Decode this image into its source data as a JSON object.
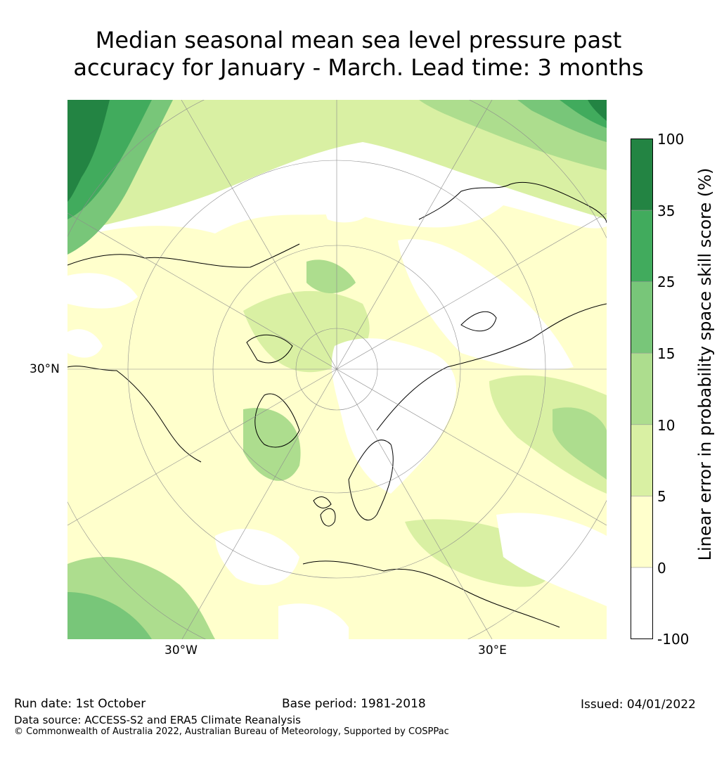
{
  "title_line1": "Median seasonal mean sea level pressure past",
  "title_line2": "accuracy for January - March. Lead time: 3 months",
  "map": {
    "projection": "north-polar-stereographic",
    "labels": {
      "lat_30n": "30°N",
      "lon_30w": "30°W",
      "lon_30e": "30°E"
    }
  },
  "colorbar": {
    "title": "Linear error in probability space skill score (%)",
    "ticks": [
      "100",
      "35",
      "25",
      "15",
      "10",
      "5",
      "0",
      "-100"
    ],
    "bins": [
      {
        "from": "-100",
        "to": "0",
        "color": "#ffffff"
      },
      {
        "from": "0",
        "to": "5",
        "color": "#ffffcc"
      },
      {
        "from": "5",
        "to": "10",
        "color": "#d9f0a3"
      },
      {
        "from": "10",
        "to": "15",
        "color": "#addd8e"
      },
      {
        "from": "15",
        "to": "25",
        "color": "#78c679"
      },
      {
        "from": "25",
        "to": "35",
        "color": "#41ab5d"
      },
      {
        "from": "35",
        "to": "100",
        "color": "#238443"
      }
    ]
  },
  "footer": {
    "run_date": "Run date: 1st October",
    "base_period": "Base period: 1981-2018",
    "issued": "Issued: 04/01/2022",
    "data_source": "Data source: ACCESS-S2 and ERA5 Climate Reanalysis",
    "copyright": "© Commonwealth of Australia 2022, Australian Bureau of Meteorology, Supported by COSPPac"
  }
}
